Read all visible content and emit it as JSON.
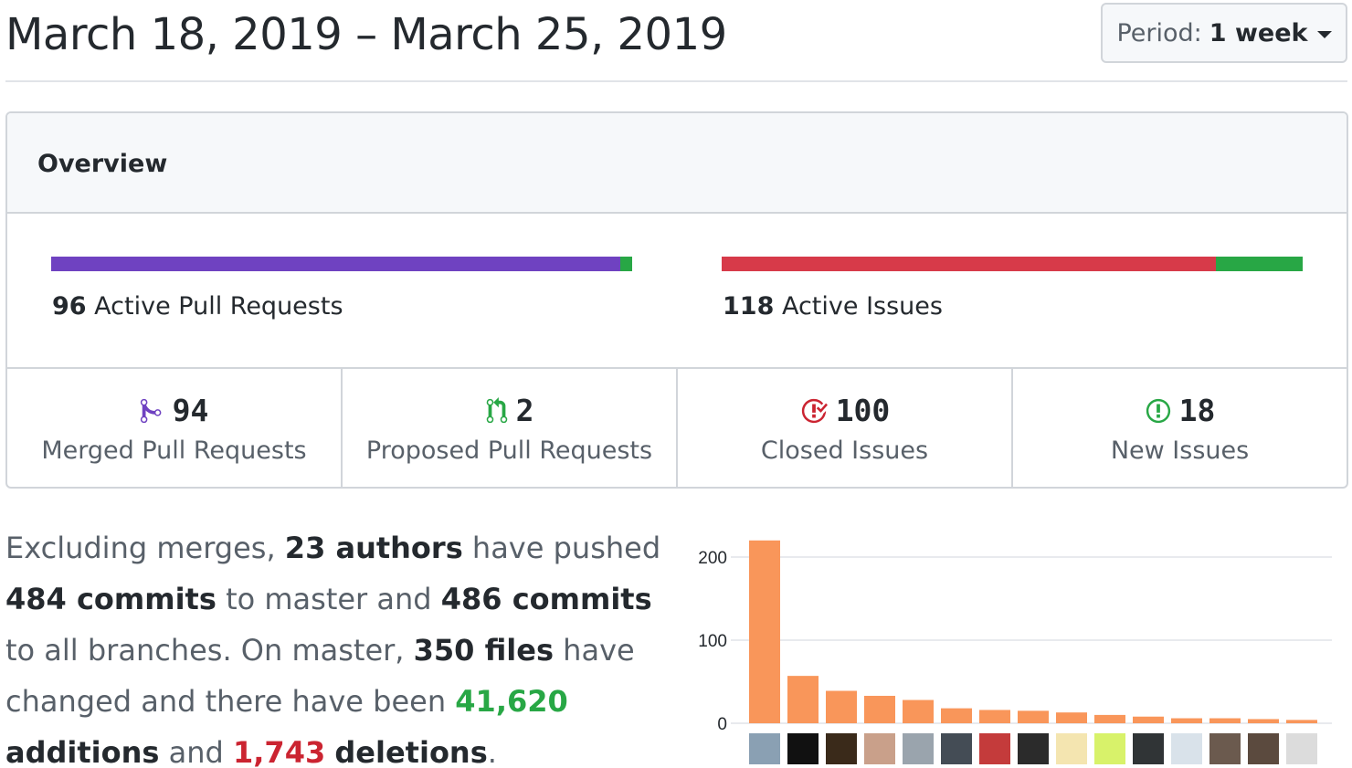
{
  "header": {
    "title": "March 18, 2019 – March 25, 2019",
    "period_label": "Period:",
    "period_value": "1 week"
  },
  "overview": {
    "title": "Overview",
    "pull_requests": {
      "count": "96",
      "label": "Active Pull Requests",
      "merged_fraction": 0.98,
      "proposed_fraction": 0.02
    },
    "issues": {
      "count": "118",
      "label": "Active Issues",
      "closed_fraction": 0.85,
      "new_fraction": 0.15
    },
    "stats": [
      {
        "icon": "git-merge-icon",
        "value": "94",
        "label": "Merged Pull Requests"
      },
      {
        "icon": "git-pull-request-icon",
        "value": "2",
        "label": "Proposed Pull Requests"
      },
      {
        "icon": "issue-closed-icon",
        "value": "100",
        "label": "Closed Issues"
      },
      {
        "icon": "issue-opened-icon",
        "value": "18",
        "label": "New Issues"
      }
    ]
  },
  "summary": {
    "p1": "Excluding merges, ",
    "authors": "23 authors",
    "p2": " have pushed ",
    "commits_master": "484 commits",
    "p3": " to master and ",
    "commits_all": "486 commits",
    "p4": " to all branches. On master, ",
    "files": "350 files",
    "p5": " have changed and there have been ",
    "additions_num": "41,620",
    "additions_word": "additions",
    "p6": " and ",
    "deletions_num": "1,743",
    "deletions_word": "deletions",
    "p7": "."
  },
  "colors": {
    "merged": "#6f42c1",
    "open": "#28a745",
    "closed": "#d73a49",
    "bar_chart": "#f9965a"
  },
  "chart_data": {
    "type": "bar",
    "ylim": [
      0,
      240
    ],
    "yticks": [
      "200",
      "100",
      "0"
    ],
    "ytick_values": [
      200,
      100,
      0
    ],
    "values": [
      220,
      57,
      39,
      33,
      28,
      18,
      16,
      15,
      13,
      10,
      8,
      6,
      6,
      5,
      4
    ],
    "grid": true
  }
}
